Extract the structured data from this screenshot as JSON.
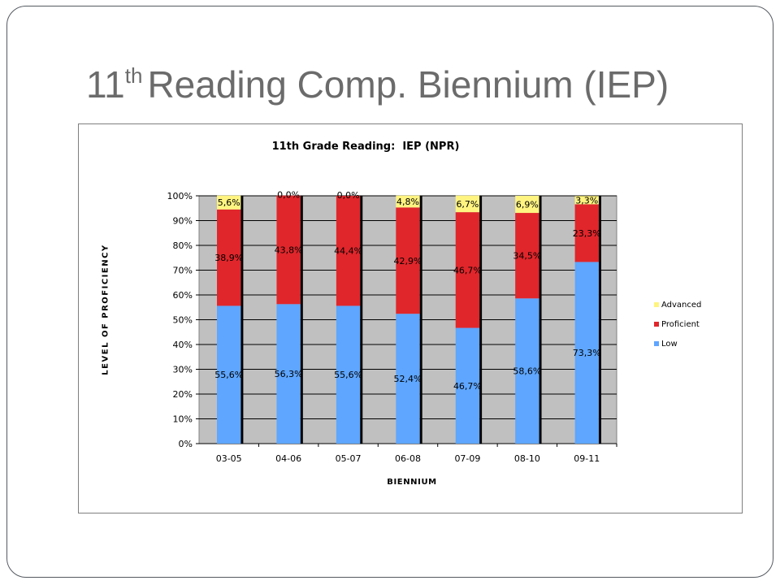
{
  "slide": {
    "title_number": "11",
    "title_superscript": "th",
    "title_rest": "Reading Comp. Biennium (IEP)"
  },
  "chart_data": {
    "type": "bar",
    "stacked": true,
    "percent_stacked": true,
    "title": "11th Grade Reading:  IEP (NPR)",
    "xlabel": "BIENNIUM",
    "ylabel": "LEVEL OF PROFICIENCY",
    "ylim": [
      0,
      100
    ],
    "y_ticks": [
      "0%",
      "10%",
      "20%",
      "30%",
      "40%",
      "50%",
      "60%",
      "70%",
      "80%",
      "90%",
      "100%"
    ],
    "categories": [
      "03-05",
      "04-06",
      "05-07",
      "06-08",
      "07-09",
      "08-10",
      "09-11"
    ],
    "series": [
      {
        "name": "Low",
        "color": "#5ea6ff",
        "values": [
          55.6,
          56.3,
          55.6,
          52.4,
          46.7,
          58.6,
          73.3
        ],
        "labels": [
          "55,6%",
          "56,3%",
          "55,6%",
          "52,4%",
          "46,7%",
          "58,6%",
          "73,3%"
        ]
      },
      {
        "name": "Proficient",
        "color": "#e0262b",
        "values": [
          38.9,
          43.8,
          44.4,
          42.9,
          46.7,
          34.5,
          23.3
        ],
        "labels": [
          "38,9%",
          "43,8%",
          "44,4%",
          "42,9%",
          "46,7%",
          "34,5%",
          "23,3%"
        ]
      },
      {
        "name": "Advanced",
        "color": "#fff480",
        "values": [
          5.6,
          0.0,
          0.0,
          4.8,
          6.7,
          6.9,
          3.3
        ],
        "labels": [
          "5,6%",
          "0,0%",
          "0,0%",
          "4,8%",
          "6,7%",
          "6,9%",
          "3,3%"
        ]
      }
    ],
    "legend_order": [
      "Advanced",
      "Proficient",
      "Low"
    ],
    "legend_position": "right",
    "plot_background": "#c0c0c0",
    "gridlines": true
  }
}
